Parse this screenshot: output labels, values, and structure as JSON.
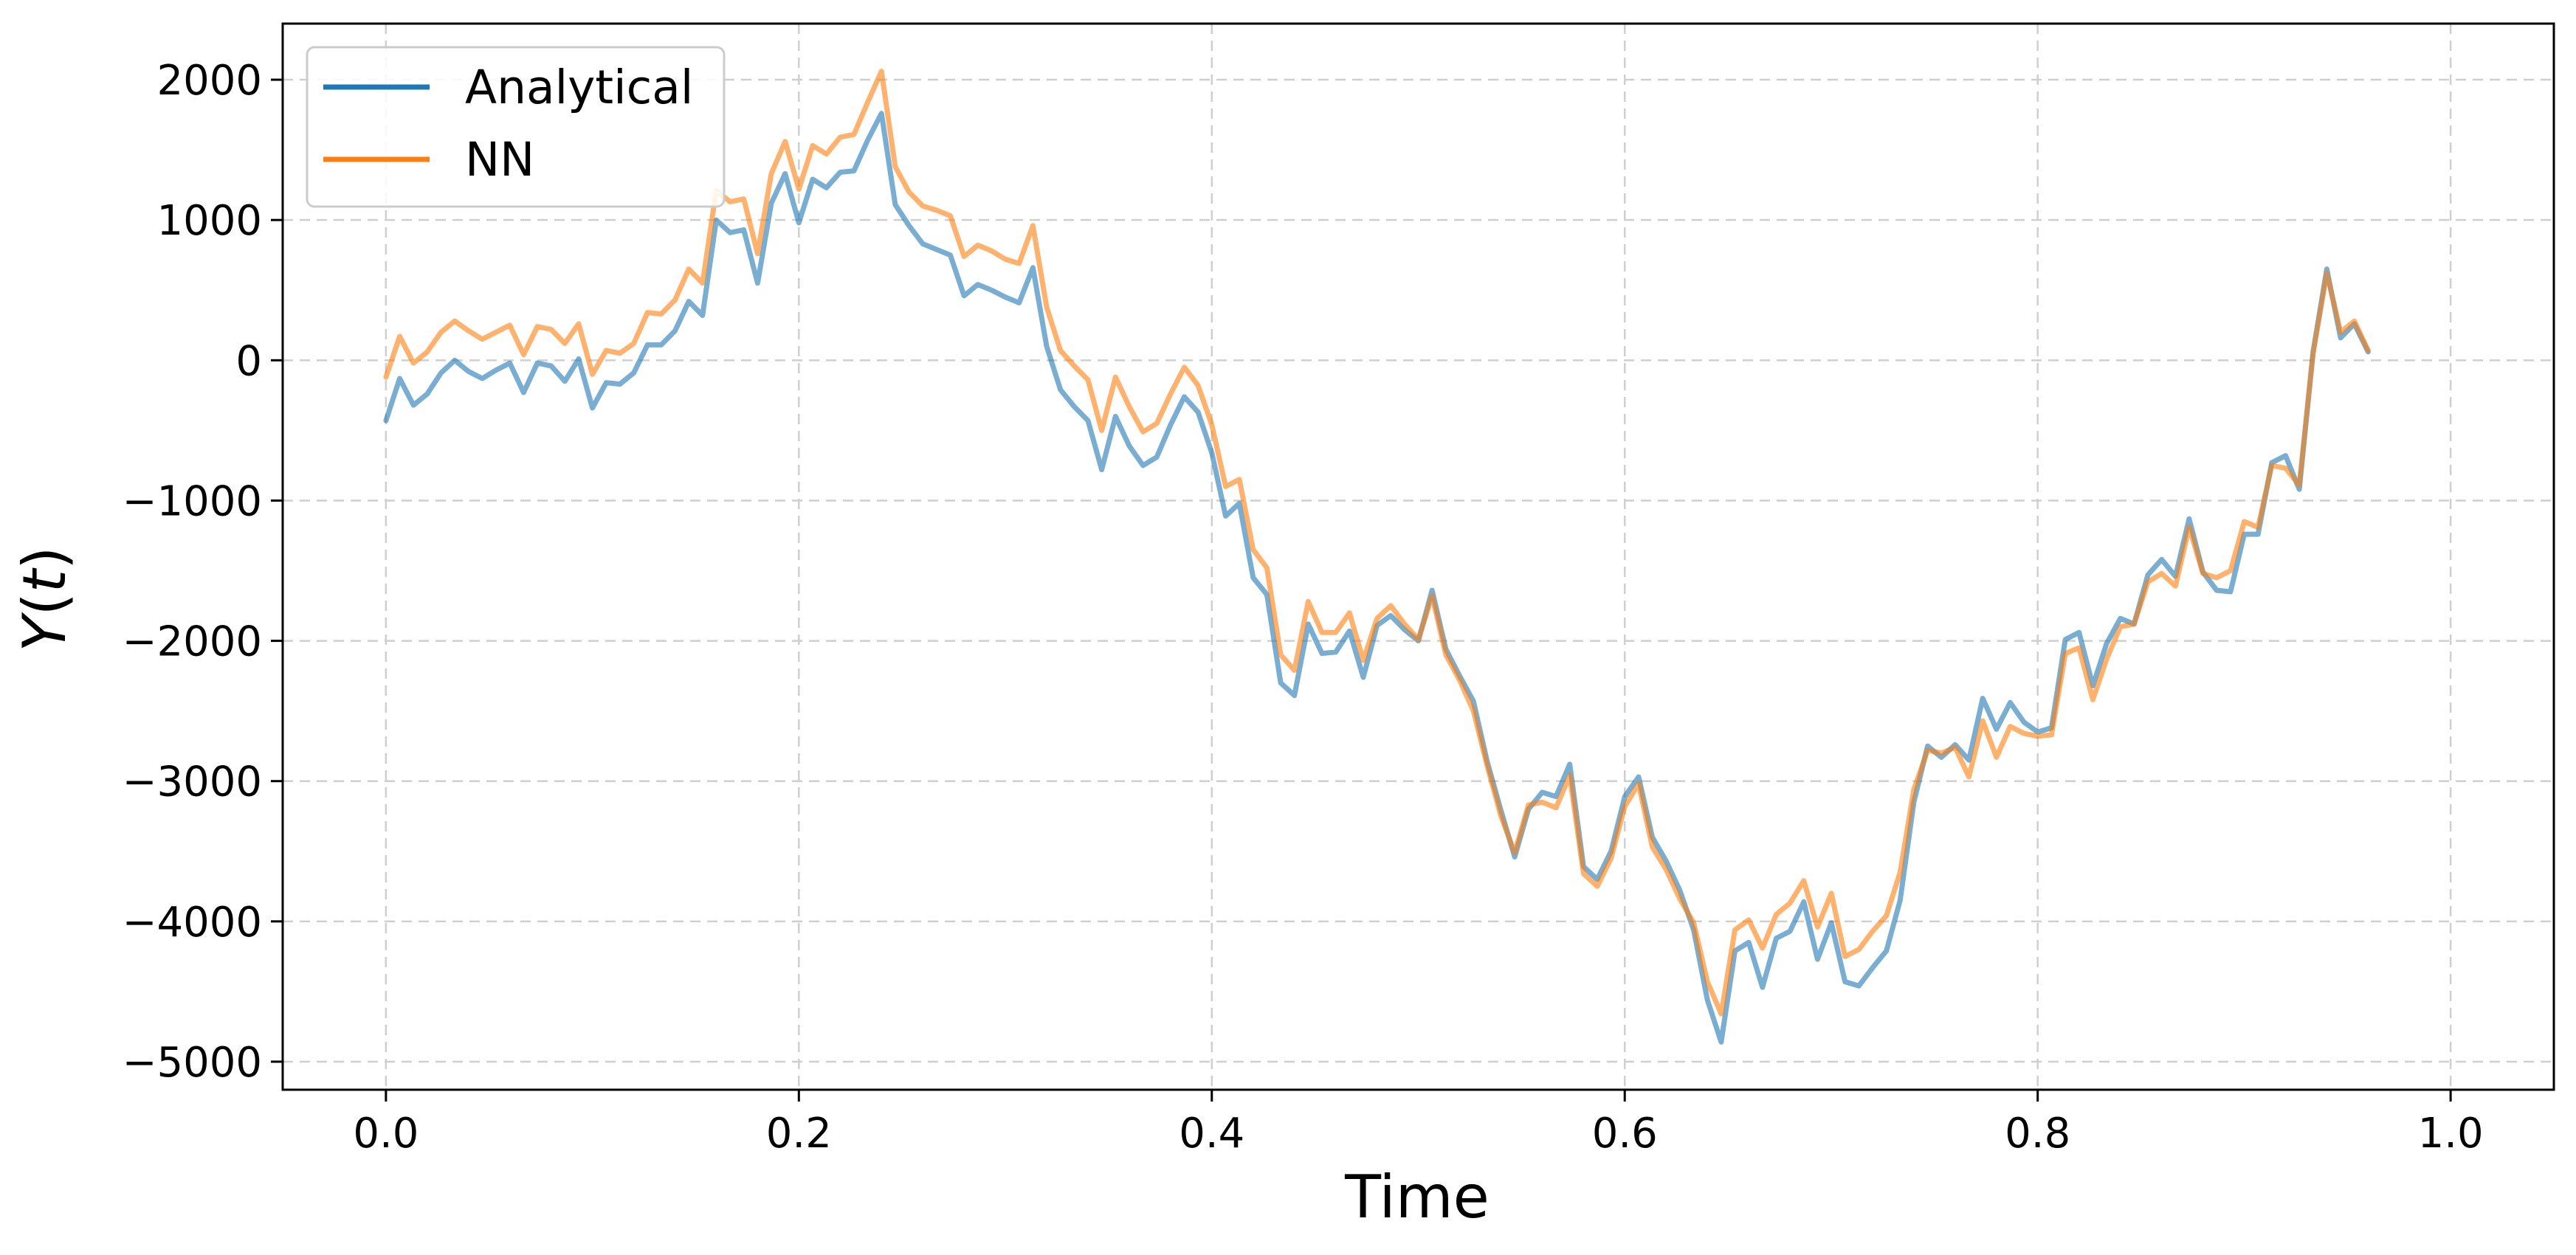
{
  "chart_data": {
    "type": "line",
    "title": "",
    "xlabel": "Time",
    "ylabel": "Y(t)",
    "xlim": [
      -0.05,
      1.05
    ],
    "ylim": [
      -5200,
      2400
    ],
    "xticks": [
      0.0,
      0.2,
      0.4,
      0.6,
      0.8,
      1.0
    ],
    "xtick_labels": [
      "0.0",
      "0.2",
      "0.4",
      "0.6",
      "0.8",
      "1.0"
    ],
    "yticks": [
      2000,
      1000,
      0,
      -1000,
      -2000,
      -3000,
      -4000,
      -5000
    ],
    "ytick_labels": [
      "2000",
      "1000",
      "0",
      "−1000",
      "−2000",
      "−3000",
      "−4000",
      "−5000"
    ],
    "grid": true,
    "legend_placement": "upper-left",
    "x_step": 0.006667,
    "x_start": 0.0,
    "series": [
      {
        "name": "Analytical",
        "color": "#1f77b4",
        "legend_color": "#1f77b4",
        "values": [
          -430,
          -130,
          -320,
          -240,
          -90,
          0,
          -80,
          -130,
          -70,
          -20,
          -230,
          -20,
          -40,
          -150,
          10,
          -340,
          -160,
          -170,
          -90,
          110,
          110,
          210,
          420,
          320,
          1000,
          910,
          930,
          550,
          1120,
          1330,
          980,
          1290,
          1230,
          1340,
          1350,
          1570,
          1760,
          1110,
          960,
          830,
          790,
          750,
          460,
          540,
          500,
          450,
          410,
          660,
          100,
          -210,
          -330,
          -430,
          -780,
          -400,
          -610,
          -750,
          -690,
          -460,
          -260,
          -370,
          -660,
          -1110,
          -1020,
          -1550,
          -1670,
          -2300,
          -2390,
          -1880,
          -2090,
          -2080,
          -1930,
          -2260,
          -1890,
          -1820,
          -1920,
          -2000,
          -1640,
          -2060,
          -2250,
          -2430,
          -2860,
          -3210,
          -3540,
          -3200,
          -3080,
          -3110,
          -2880,
          -3610,
          -3700,
          -3500,
          -3110,
          -2970,
          -3400,
          -3570,
          -3780,
          -4060,
          -4560,
          -4860,
          -4210,
          -4150,
          -4470,
          -4120,
          -4070,
          -3860,
          -4270,
          -4010,
          -4430,
          -4460,
          -4330,
          -4210,
          -3850,
          -3150,
          -2750,
          -2830,
          -2740,
          -2850,
          -2410,
          -2630,
          -2440,
          -2580,
          -2650,
          -2620,
          -1990,
          -1940,
          -2320,
          -2020,
          -1840,
          -1880,
          -1530,
          -1420,
          -1540,
          -1130,
          -1510,
          -1640,
          -1650,
          -1240,
          -1240,
          -730,
          -680,
          -920,
          60,
          650,
          160,
          260,
          60
        ]
      },
      {
        "name": "NN",
        "color": "#ff7f0e",
        "legend_color": "#ff7f0e",
        "values": [
          -120,
          170,
          -20,
          60,
          200,
          280,
          210,
          150,
          200,
          250,
          40,
          240,
          220,
          120,
          260,
          -100,
          70,
          50,
          120,
          340,
          330,
          430,
          650,
          550,
          1210,
          1130,
          1150,
          760,
          1330,
          1560,
          1220,
          1530,
          1470,
          1590,
          1610,
          1840,
          2060,
          1380,
          1200,
          1100,
          1070,
          1030,
          740,
          820,
          780,
          720,
          690,
          960,
          380,
          70,
          -40,
          -140,
          -500,
          -120,
          -330,
          -510,
          -450,
          -240,
          -50,
          -180,
          -460,
          -900,
          -850,
          -1350,
          -1480,
          -2100,
          -2210,
          -1720,
          -1940,
          -1940,
          -1800,
          -2140,
          -1840,
          -1750,
          -1880,
          -1990,
          -1680,
          -2100,
          -2280,
          -2500,
          -2890,
          -3250,
          -3510,
          -3170,
          -3150,
          -3190,
          -2960,
          -3660,
          -3750,
          -3550,
          -3180,
          -3020,
          -3470,
          -3630,
          -3840,
          -4010,
          -4430,
          -4660,
          -4060,
          -3990,
          -4190,
          -3950,
          -3870,
          -3710,
          -4040,
          -3800,
          -4250,
          -4200,
          -4070,
          -3960,
          -3650,
          -3060,
          -2780,
          -2800,
          -2760,
          -2970,
          -2570,
          -2830,
          -2610,
          -2660,
          -2680,
          -2670,
          -2090,
          -2050,
          -2420,
          -2130,
          -1900,
          -1880,
          -1580,
          -1520,
          -1610,
          -1190,
          -1520,
          -1550,
          -1500,
          -1150,
          -1190,
          -750,
          -770,
          -890,
          50,
          620,
          200,
          280,
          70
        ]
      }
    ]
  }
}
